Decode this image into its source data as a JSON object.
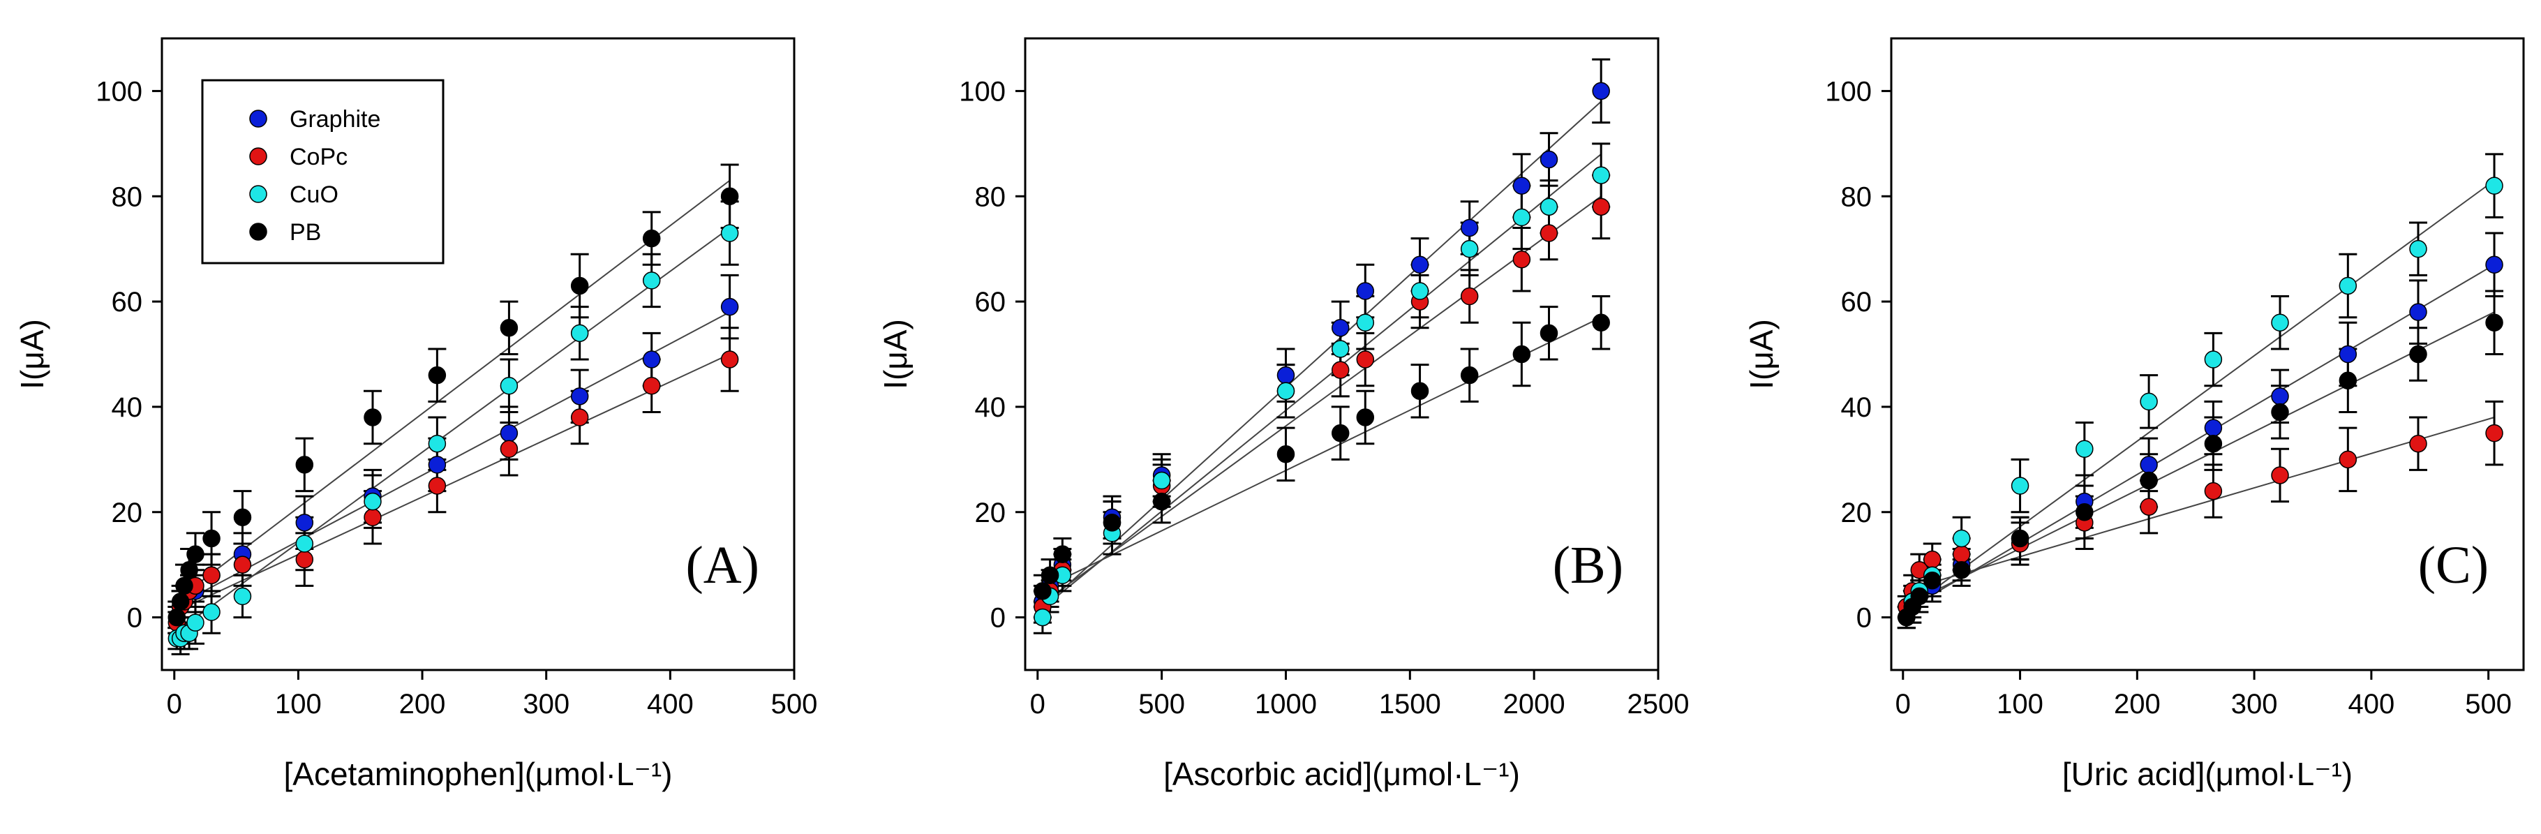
{
  "legend": {
    "items": [
      {
        "name": "Graphite",
        "color": "#0a1fd8"
      },
      {
        "name": "CoPc",
        "color": "#e01414"
      },
      {
        "name": "CuO",
        "color": "#1ee6e6"
      },
      {
        "name": "PB",
        "color": "#000000"
      }
    ],
    "placement": "top-left of panel A"
  },
  "chart_data": [
    {
      "type": "scatter",
      "panel": "(A)",
      "xlabel": "[Acetaminophen](μmol·L⁻¹)",
      "ylabel": "I(μA)",
      "xlim": [
        -10,
        500
      ],
      "ylim": [
        -10,
        110
      ],
      "xticks": [
        0,
        100,
        200,
        300,
        400,
        500
      ],
      "yticks": [
        0,
        20,
        40,
        60,
        80,
        100
      ],
      "fit_lines": true,
      "series": [
        {
          "name": "Graphite",
          "color": "#0a1fd8",
          "x": [
            2,
            5,
            8,
            12,
            17,
            30,
            55,
            105,
            160,
            212,
            270,
            327,
            385,
            448
          ],
          "y": [
            0,
            2,
            3,
            5,
            5,
            8,
            12,
            18,
            23,
            29,
            35,
            42,
            49,
            59
          ],
          "err": [
            2,
            3,
            3,
            3,
            4,
            4,
            4,
            5,
            5,
            5,
            5,
            5,
            5,
            6
          ],
          "fit": [
            [
              0,
              2
            ],
            [
              448,
              58
            ]
          ]
        },
        {
          "name": "CoPc",
          "color": "#e01414",
          "x": [
            2,
            5,
            8,
            12,
            17,
            30,
            55,
            105,
            160,
            212,
            270,
            327,
            385,
            448
          ],
          "y": [
            -1,
            2,
            3,
            5,
            6,
            8,
            10,
            11,
            19,
            25,
            32,
            38,
            44,
            49
          ],
          "err": [
            2,
            3,
            3,
            3,
            4,
            4,
            4,
            5,
            5,
            5,
            5,
            5,
            5,
            6
          ],
          "fit": [
            [
              0,
              1
            ],
            [
              448,
              50
            ]
          ]
        },
        {
          "name": "CuO",
          "color": "#1ee6e6",
          "x": [
            2,
            5,
            8,
            12,
            17,
            30,
            55,
            105,
            160,
            212,
            270,
            327,
            385,
            448
          ],
          "y": [
            -4,
            -4,
            -3,
            -3,
            -1,
            1,
            4,
            14,
            22,
            33,
            44,
            54,
            64,
            73
          ],
          "err": [
            2,
            3,
            3,
            3,
            4,
            4,
            4,
            5,
            5,
            5,
            5,
            5,
            5,
            6
          ],
          "fit": [
            [
              0,
              -3
            ],
            [
              448,
              74
            ]
          ]
        },
        {
          "name": "PB",
          "color": "#000000",
          "x": [
            2,
            5,
            8,
            12,
            17,
            30,
            55,
            105,
            160,
            212,
            270,
            327,
            385,
            448
          ],
          "y": [
            0,
            3,
            6,
            9,
            12,
            15,
            19,
            29,
            38,
            46,
            55,
            63,
            72,
            80
          ],
          "err": [
            3,
            3,
            4,
            4,
            4,
            5,
            5,
            5,
            5,
            5,
            5,
            6,
            5,
            6
          ],
          "fit": [
            [
              0,
              3
            ],
            [
              448,
              83
            ]
          ]
        }
      ]
    },
    {
      "type": "scatter",
      "panel": "(B)",
      "xlabel": "[Ascorbic acid](μmol·L⁻¹)",
      "ylabel": "I(μA)",
      "xlim": [
        -50,
        2500
      ],
      "ylim": [
        -10,
        110
      ],
      "xticks": [
        0,
        500,
        1000,
        1500,
        2000,
        2500
      ],
      "yticks": [
        0,
        20,
        40,
        60,
        80,
        100
      ],
      "fit_lines": true,
      "series": [
        {
          "name": "Graphite",
          "color": "#0a1fd8",
          "x": [
            20,
            50,
            100,
            300,
            500,
            1000,
            1220,
            1320,
            1540,
            1740,
            1950,
            2060,
            2270
          ],
          "y": [
            3,
            6,
            10,
            19,
            27,
            46,
            55,
            62,
            67,
            74,
            82,
            87,
            100
          ],
          "err": [
            3,
            3,
            3,
            4,
            4,
            5,
            5,
            5,
            5,
            5,
            6,
            5,
            6
          ],
          "fit": [
            [
              0,
              1
            ],
            [
              2270,
              98
            ]
          ]
        },
        {
          "name": "CoPc",
          "color": "#e01414",
          "x": [
            20,
            50,
            100,
            300,
            500,
            1000,
            1220,
            1320,
            1540,
            1740,
            1950,
            2060,
            2270
          ],
          "y": [
            2,
            5,
            9,
            18,
            25,
            43,
            47,
            49,
            60,
            61,
            68,
            73,
            78
          ],
          "err": [
            3,
            3,
            3,
            4,
            4,
            5,
            5,
            5,
            5,
            5,
            6,
            5,
            6
          ],
          "fit": [
            [
              0,
              2
            ],
            [
              2270,
              80
            ]
          ]
        },
        {
          "name": "CuO",
          "color": "#1ee6e6",
          "x": [
            20,
            50,
            100,
            300,
            500,
            1000,
            1220,
            1320,
            1540,
            1740,
            1950,
            2060,
            2270
          ],
          "y": [
            0,
            4,
            8,
            16,
            26,
            43,
            51,
            56,
            62,
            70,
            76,
            78,
            84
          ],
          "err": [
            3,
            3,
            3,
            4,
            4,
            5,
            5,
            5,
            5,
            5,
            6,
            5,
            6
          ],
          "fit": [
            [
              0,
              1
            ],
            [
              2270,
              88
            ]
          ]
        },
        {
          "name": "PB",
          "color": "#000000",
          "x": [
            20,
            50,
            100,
            300,
            500,
            1000,
            1220,
            1320,
            1540,
            1740,
            1950,
            2060,
            2270
          ],
          "y": [
            5,
            8,
            12,
            18,
            22,
            31,
            35,
            38,
            43,
            46,
            50,
            54,
            56
          ],
          "err": [
            3,
            3,
            3,
            4,
            4,
            5,
            5,
            5,
            5,
            5,
            6,
            5,
            5
          ],
          "fit": [
            [
              0,
              5
            ],
            [
              2270,
              57
            ]
          ]
        }
      ]
    },
    {
      "type": "scatter",
      "panel": "(C)",
      "xlabel": "[Uric acid](μmol·L⁻¹)",
      "ylabel": "I(μA)",
      "xlim": [
        -10,
        530
      ],
      "ylim": [
        -10,
        110
      ],
      "xticks": [
        0,
        100,
        200,
        300,
        400,
        500
      ],
      "yticks": [
        0,
        20,
        40,
        60,
        80,
        100
      ],
      "fit_lines": true,
      "series": [
        {
          "name": "Graphite",
          "color": "#0a1fd8",
          "x": [
            3,
            8,
            14,
            25,
            50,
            100,
            155,
            210,
            265,
            322,
            380,
            440,
            505
          ],
          "y": [
            0,
            2,
            4,
            6,
            10,
            15,
            22,
            29,
            36,
            42,
            50,
            58,
            67
          ],
          "err": [
            2,
            3,
            3,
            3,
            3,
            4,
            5,
            5,
            5,
            5,
            6,
            6,
            6
          ],
          "fit": [
            [
              0,
              1
            ],
            [
              505,
              67
            ]
          ]
        },
        {
          "name": "CoPc",
          "color": "#e01414",
          "x": [
            3,
            8,
            14,
            25,
            50,
            100,
            155,
            210,
            265,
            322,
            380,
            440,
            505
          ],
          "y": [
            2,
            5,
            9,
            11,
            12,
            14,
            18,
            21,
            24,
            27,
            30,
            33,
            35
          ],
          "err": [
            2,
            3,
            3,
            3,
            3,
            4,
            5,
            5,
            5,
            5,
            6,
            5,
            6
          ],
          "fit": [
            [
              0,
              5
            ],
            [
              505,
              38
            ]
          ]
        },
        {
          "name": "CuO",
          "color": "#1ee6e6",
          "x": [
            3,
            8,
            14,
            25,
            50,
            100,
            155,
            210,
            265,
            322,
            380,
            440,
            505
          ],
          "y": [
            0,
            3,
            5,
            8,
            15,
            25,
            32,
            41,
            49,
            56,
            63,
            70,
            82
          ],
          "err": [
            2,
            3,
            3,
            3,
            4,
            5,
            5,
            5,
            5,
            5,
            6,
            5,
            6
          ],
          "fit": [
            [
              0,
              1
            ],
            [
              505,
              83
            ]
          ]
        },
        {
          "name": "PB",
          "color": "#000000",
          "x": [
            3,
            8,
            14,
            25,
            50,
            100,
            155,
            210,
            265,
            322,
            380,
            440,
            505
          ],
          "y": [
            0,
            2,
            4,
            7,
            9,
            15,
            20,
            26,
            33,
            39,
            45,
            50,
            56
          ],
          "err": [
            2,
            3,
            3,
            3,
            3,
            4,
            5,
            5,
            5,
            5,
            6,
            5,
            6
          ],
          "fit": [
            [
              0,
              2
            ],
            [
              505,
              58
            ]
          ]
        }
      ]
    }
  ]
}
